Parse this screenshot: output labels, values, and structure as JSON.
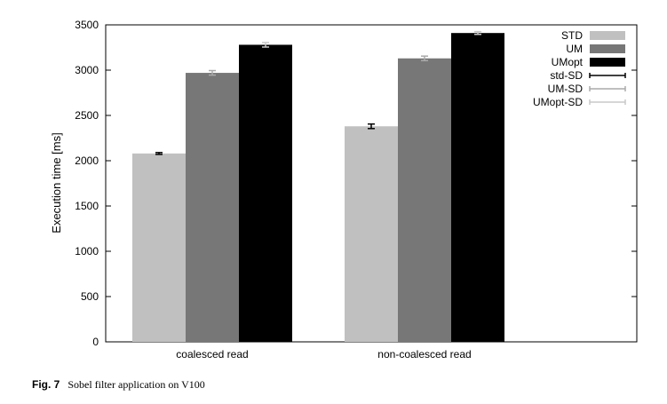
{
  "caption": {
    "figure_number": "Fig. 7",
    "text": "Sobel filter application on V100"
  },
  "colors": {
    "STD": "#c0c0c0",
    "UM": "#777777",
    "UMopt": "#000000",
    "std-SD": "#000000",
    "UM-SD": "#aaaaaa",
    "UMopt-SD": "#c8c8c8"
  },
  "chart_data": {
    "type": "bar",
    "title": "",
    "xlabel": "",
    "ylabel": "Execution time [ms]",
    "ylim": [
      0,
      3500
    ],
    "yticks": [
      0,
      500,
      1000,
      1500,
      2000,
      2500,
      3000,
      3500
    ],
    "categories": [
      "coalesced read",
      "non-coalesced read"
    ],
    "series": [
      {
        "name": "STD",
        "values": [
          2080,
          2380
        ],
        "errors": [
          10,
          25
        ]
      },
      {
        "name": "UM",
        "values": [
          2970,
          3130
        ],
        "errors": [
          25,
          25
        ]
      },
      {
        "name": "UMopt",
        "values": [
          3280,
          3410
        ],
        "errors": [
          25,
          15
        ]
      }
    ],
    "legend": {
      "position": "top-right",
      "entries": [
        "STD",
        "UM",
        "UMopt",
        "std-SD",
        "UM-SD",
        "UMopt-SD"
      ]
    },
    "grid": false
  }
}
